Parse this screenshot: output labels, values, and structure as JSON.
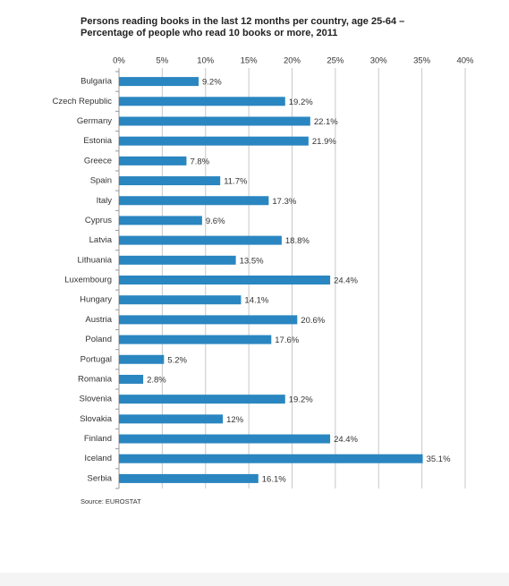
{
  "chart_data": {
    "type": "hbar",
    "title": "Persons reading books in the last 12 months per country, age 25-64 – Percentage of people who read 10 books or more, 2011",
    "source": "Source: EUROSTAT",
    "categories": [
      "Bulgaria",
      "Czech Republic",
      "Germany",
      "Estonia",
      "Greece",
      "Spain",
      "Italy",
      "Cyprus",
      "Latvia",
      "Lithuania",
      "Luxembourg",
      "Hungary",
      "Austria",
      "Poland",
      "Portugal",
      "Romania",
      "Slovenia",
      "Slovakia",
      "Finland",
      "Iceland",
      "Serbia"
    ],
    "values": [
      9.2,
      19.2,
      22.1,
      21.9,
      7.8,
      11.7,
      17.3,
      9.6,
      18.8,
      13.5,
      24.4,
      14.1,
      20.6,
      17.6,
      5.2,
      2.8,
      19.2,
      12,
      24.4,
      35.1,
      16.1
    ],
    "value_labels": [
      "9.2%",
      "19.2%",
      "22.1%",
      "21.9%",
      "7.8%",
      "11.7%",
      "17.3%",
      "9.6%",
      "18.8%",
      "13.5%",
      "24.4%",
      "14.1%",
      "20.6%",
      "17.6%",
      "5.2%",
      "2.8%",
      "19.2%",
      "12%",
      "24.4%",
      "35.1%",
      "16.1%"
    ],
    "color": "#2a86c0",
    "xlim": [
      0,
      40
    ],
    "xticks": [
      {
        "value": 0,
        "label": "0%"
      },
      {
        "value": 5,
        "label": "5%"
      },
      {
        "value": 10,
        "label": "10%"
      },
      {
        "value": 15,
        "label": "15%"
      },
      {
        "value": 20,
        "label": "20%"
      },
      {
        "value": 25,
        "label": "25%"
      },
      {
        "value": 30,
        "label": "30%"
      },
      {
        "value": 35,
        "label": "35%"
      },
      {
        "value": 40,
        "label": "40%"
      }
    ],
    "grid": true
  }
}
